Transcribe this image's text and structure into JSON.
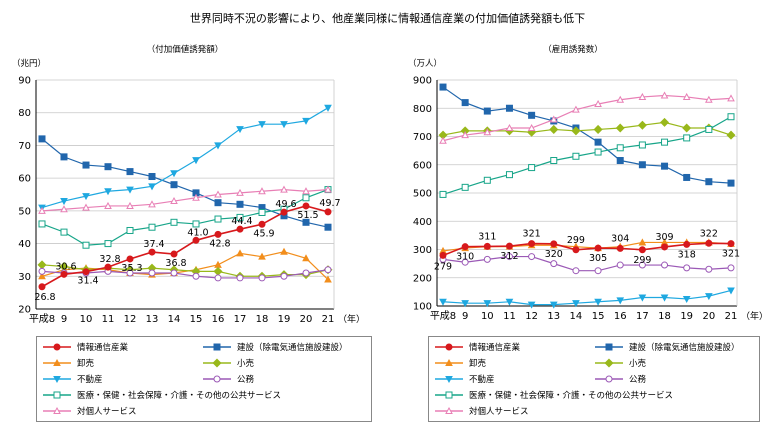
{
  "page": {
    "title": "世界同時不況の影響により、他産業同様に情報通信産業の付加価値誘発額も低下"
  },
  "colors": {
    "info": "#d7191c",
    "construction": "#2166ac",
    "wholesale": "#f28e1c",
    "retail": "#99b81b",
    "realestate": "#1fa8e0",
    "public": "#9b59b6",
    "medical": "#17a589",
    "personal": "#e87fb5"
  },
  "chart_data": [
    {
      "type": "line",
      "title": "（付加価値誘発額）",
      "ylabel": "（兆円）",
      "xlabel": "（年）",
      "ylim": [
        20,
        90
      ],
      "yticks": [
        20,
        30,
        40,
        50,
        60,
        70,
        80,
        90
      ],
      "categories": [
        "平成8",
        "9",
        "10",
        "11",
        "12",
        "13",
        "14",
        "15",
        "16",
        "17",
        "18",
        "19",
        "20",
        "21"
      ],
      "grid": true,
      "series": [
        {
          "name": "情報通信産業",
          "key": "info",
          "marker": "circle-filled",
          "values": [
            26.8,
            30.6,
            31.4,
            32.8,
            35.3,
            37.4,
            36.8,
            41.0,
            42.8,
            44.4,
            45.9,
            49.6,
            51.5,
            49.7
          ],
          "labels": [
            "26.8",
            "30.6",
            "31.4",
            "32.8",
            "35.3",
            "37.4",
            "36.8",
            "41.0",
            "42.8",
            "44.4",
            "45.9",
            "49.6",
            "51.5",
            "49.7"
          ]
        },
        {
          "name": "建設（除電気通信施設建設）",
          "key": "construction",
          "marker": "square-filled",
          "values": [
            72,
            66.5,
            64,
            63.5,
            62,
            60.5,
            58,
            55.5,
            52.5,
            52,
            51,
            48.5,
            46.5,
            45
          ]
        },
        {
          "name": "卸売",
          "key": "wholesale",
          "marker": "triangle-up",
          "values": [
            30,
            32,
            32.5,
            32,
            31,
            30.5,
            31,
            32,
            33.5,
            37,
            36,
            37.5,
            35.5,
            29
          ]
        },
        {
          "name": "小売",
          "key": "retail",
          "marker": "diamond-filled",
          "values": [
            33.5,
            33,
            32,
            32.5,
            32,
            32.5,
            32,
            31.5,
            31.5,
            30,
            30,
            30.5,
            30.5,
            32
          ]
        },
        {
          "name": "不動産",
          "key": "realestate",
          "marker": "triangle-down",
          "values": [
            51,
            53,
            54.5,
            56,
            56.5,
            57.5,
            61.5,
            65.5,
            70,
            75,
            76.5,
            76.5,
            77.5,
            81.5
          ]
        },
        {
          "name": "公務",
          "key": "public",
          "marker": "circle-open",
          "values": [
            31.5,
            31,
            31,
            31.5,
            31,
            31,
            31,
            30,
            29.5,
            29.5,
            29.5,
            30,
            31,
            32
          ]
        },
        {
          "name": "医療・保健・社会保障・介護・その他の公共サービス",
          "key": "medical",
          "marker": "square-open",
          "values": [
            46,
            43.5,
            39.5,
            40,
            44,
            45,
            46.5,
            46,
            47.5,
            48,
            49.5,
            50.5,
            54,
            56.5
          ]
        },
        {
          "name": "対個人サービス",
          "key": "personal",
          "marker": "triangle-up-open",
          "values": [
            50,
            50.5,
            51,
            51.5,
            51.5,
            52,
            53,
            54,
            55,
            55.5,
            56,
            56.5,
            56,
            56.5
          ]
        }
      ]
    },
    {
      "type": "line",
      "title": "（雇用誘発数）",
      "ylabel": "（万人）",
      "xlabel": "（年）",
      "ylim": [
        100,
        900
      ],
      "yticks": [
        100,
        200,
        300,
        400,
        500,
        600,
        700,
        800,
        900
      ],
      "categories": [
        "平成8",
        "9",
        "10",
        "11",
        "12",
        "13",
        "14",
        "15",
        "16",
        "17",
        "18",
        "19",
        "20",
        "21"
      ],
      "grid": true,
      "series": [
        {
          "name": "情報通信産業",
          "key": "info",
          "marker": "circle-filled",
          "values": [
            279,
            310,
            311,
            312,
            321,
            320,
            299,
            305,
            304,
            299,
            309,
            318,
            322,
            321
          ],
          "labels": [
            "279",
            "310",
            "311",
            "312",
            "321",
            "320",
            "299",
            "305",
            "304",
            "299",
            "309",
            "318",
            "322",
            "321"
          ]
        },
        {
          "name": "建設（除電気通信施設建設）",
          "key": "construction",
          "marker": "square-filled",
          "values": [
            875,
            820,
            790,
            800,
            775,
            755,
            730,
            680,
            615,
            600,
            595,
            555,
            540,
            535
          ]
        },
        {
          "name": "卸売",
          "key": "wholesale",
          "marker": "triangle-up",
          "values": [
            295,
            305,
            310,
            310,
            315,
            315,
            310,
            305,
            310,
            325,
            325,
            325,
            325,
            320
          ]
        },
        {
          "name": "小売",
          "key": "retail",
          "marker": "diamond-filled",
          "values": [
            705,
            720,
            720,
            720,
            715,
            725,
            720,
            725,
            730,
            740,
            750,
            730,
            730,
            705
          ]
        },
        {
          "name": "不動産",
          "key": "realestate",
          "marker": "triangle-down",
          "values": [
            115,
            110,
            110,
            115,
            105,
            105,
            110,
            115,
            120,
            130,
            130,
            125,
            135,
            155
          ]
        },
        {
          "name": "公務",
          "key": "public",
          "marker": "circle-open",
          "values": [
            265,
            255,
            265,
            275,
            275,
            250,
            225,
            225,
            245,
            245,
            245,
            235,
            230,
            235
          ]
        },
        {
          "name": "医療・保健・社会保障・介護・その他の公共サービス",
          "key": "medical",
          "marker": "square-open",
          "values": [
            495,
            520,
            545,
            565,
            590,
            615,
            630,
            645,
            660,
            670,
            680,
            695,
            725,
            770
          ]
        },
        {
          "name": "対個人サービス",
          "key": "personal",
          "marker": "triangle-up-open",
          "values": [
            685,
            705,
            715,
            730,
            730,
            760,
            795,
            815,
            830,
            840,
            845,
            840,
            830,
            835
          ]
        }
      ]
    }
  ],
  "legend": {
    "items": [
      {
        "key": "info",
        "label": "情報通信産業",
        "marker": "circle-filled"
      },
      {
        "key": "construction",
        "label": "建設（除電気通信施設建設）",
        "marker": "square-filled"
      },
      {
        "key": "wholesale",
        "label": "卸売",
        "marker": "triangle-up"
      },
      {
        "key": "retail",
        "label": "小売",
        "marker": "diamond-filled"
      },
      {
        "key": "realestate",
        "label": "不動産",
        "marker": "triangle-down"
      },
      {
        "key": "public",
        "label": "公務",
        "marker": "circle-open"
      },
      {
        "key": "medical",
        "label": "医療・保健・社会保障・介護・その他の公共サービス",
        "marker": "square-open"
      },
      {
        "key": "personal",
        "label": "対個人サービス",
        "marker": "triangle-up-open"
      }
    ]
  }
}
